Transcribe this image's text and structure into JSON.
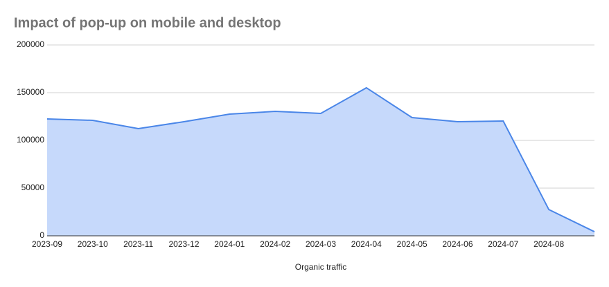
{
  "chart_data": {
    "type": "area",
    "title": "Impact of pop-up on mobile and desktop",
    "x_label": "Organic traffic",
    "categories": [
      "2023-09",
      "2023-10",
      "2023-11",
      "2023-12",
      "2024-01",
      "2024-02",
      "2024-03",
      "2024-04",
      "2024-05",
      "2024-06",
      "2024-07",
      "2024-08",
      null
    ],
    "values": [
      122500,
      121000,
      112300,
      119600,
      127500,
      130400,
      128300,
      155100,
      123900,
      119600,
      120300,
      27500,
      4300
    ],
    "color": "#4a86e8",
    "fill": "#c6d9fb",
    "ylim": [
      0,
      200000
    ],
    "yticks": [
      0,
      50000,
      100000,
      150000,
      200000
    ],
    "grid": true
  }
}
